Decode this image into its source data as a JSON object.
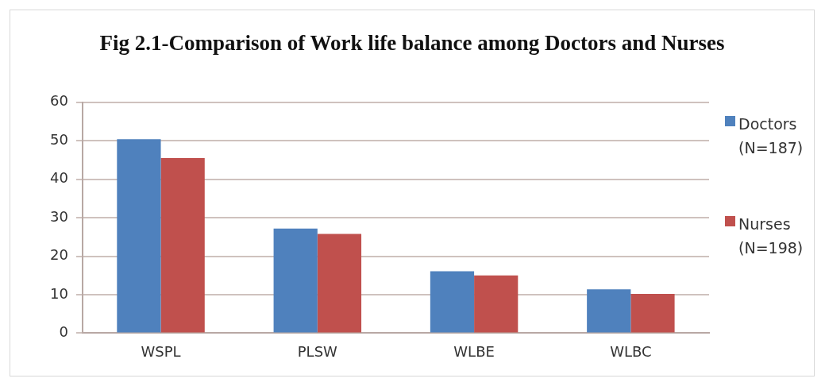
{
  "chart_data": {
    "type": "bar",
    "title": "Fig 2.1-Comparison of Work life balance among Doctors and Nurses",
    "categories": [
      "WSPL",
      "PLSW",
      "WLBE",
      "WLBC"
    ],
    "series": [
      {
        "name": "Doctors (N=187)",
        "color": "#4f81bd",
        "values": [
          50.4,
          27.2,
          16.1,
          11.4
        ]
      },
      {
        "name": "Nurses (N=198)",
        "color": "#c0504d",
        "values": [
          45.5,
          25.8,
          15.0,
          10.2
        ]
      }
    ],
    "ylim": [
      0,
      60
    ],
    "yticks": [
      0,
      10,
      20,
      30,
      40,
      50,
      60
    ],
    "grid": "y",
    "legend": "right"
  }
}
